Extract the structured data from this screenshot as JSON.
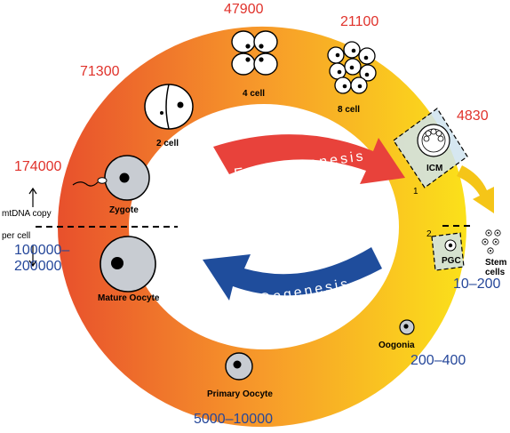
{
  "colors": {
    "ring_start": "#e8502c",
    "ring_mid": "#f79a2a",
    "ring_end": "#fbe11a",
    "embryogenesis_arrow": "#e8423b",
    "oogenesis_arrow": "#1f4d9c",
    "copy_number_red": "#e0322b",
    "copy_number_blue": "#25479a",
    "box_fill": "#cfe3ee",
    "cell_grey": "#c8ccd2"
  },
  "arrows": {
    "embryogenesis": "Embryogenesis",
    "oogenesis": "Oogenesis"
  },
  "stages": {
    "two_cell": "2 cell",
    "four_cell": "4 cell",
    "eight_cell": "8 cell",
    "icm": "ICM",
    "stem_cells_line1": "Stem",
    "stem_cells_line2": "cells",
    "pgc": "PGC",
    "oogonia": "Oogonia",
    "primary_oocyte": "Primary Oocyte",
    "mature_oocyte": "Mature Oocyte",
    "zygote": "Zygote"
  },
  "copy_numbers": {
    "two_cell": "71300",
    "four_cell": "47900",
    "eight_cell": "21100",
    "icm": "4830",
    "zygote": "174000",
    "mature_oocyte_line1": "100000–",
    "mature_oocyte_line2": "200000",
    "pgc": "10–200",
    "oogonia": "200–400",
    "primary_oocyte": "5000–10000"
  },
  "axis_label": {
    "line1": "mtDNA copy",
    "line2": "per cell"
  },
  "markers": {
    "icm_marker": "1",
    "pgc_marker": "2"
  }
}
